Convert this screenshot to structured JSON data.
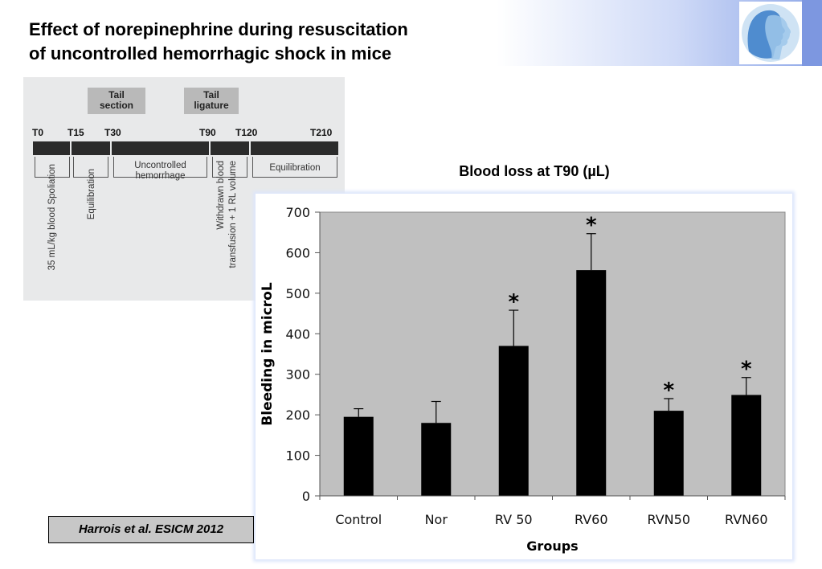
{
  "slide": {
    "title_line1": "Effect of norepinephrine during resuscitation",
    "title_line2": "of uncontrolled hemorrhagic shock in mice",
    "citation": "Harrois et al. ESICM 2012",
    "logo_icon": "head-profile-icon",
    "accent_color": "#7d97e0"
  },
  "timeline": {
    "boxes": {
      "tail_section": [
        "Tail",
        "section"
      ],
      "tail_ligature": [
        "Tail",
        "ligature"
      ]
    },
    "ticks": [
      "T0",
      "T15",
      "T30",
      "T90",
      "T120",
      "T210"
    ],
    "phases": {
      "spoliation": "35 mL/kg blood Spoliation",
      "equilibration1": "Equilibration",
      "hemorrhage": [
        "Uncontrolled",
        "hemorrhage"
      ],
      "transfusion": [
        "Withdrawn blood",
        "transfusion + 1 RL volume"
      ],
      "equilibration2": "Equilibration"
    }
  },
  "chart_data": {
    "type": "bar",
    "title": "Blood loss at T90 (µL)",
    "xlabel": "Groups",
    "ylabel": "Bleeding in microL",
    "categories": [
      "Control",
      "Nor",
      "RV 50",
      "RV60",
      "RVN50",
      "RVN60"
    ],
    "values": [
      195,
      180,
      370,
      557,
      210,
      249
    ],
    "error_upper": [
      215,
      233,
      458,
      647,
      240,
      292
    ],
    "significant": [
      false,
      false,
      true,
      true,
      true,
      true
    ],
    "significance_marker": "*",
    "ylim": [
      0,
      700
    ],
    "yticks": [
      0,
      100,
      200,
      300,
      400,
      500,
      600,
      700
    ],
    "grid": false,
    "plot_background": "#c0c0c0",
    "bar_color": "#000000"
  }
}
